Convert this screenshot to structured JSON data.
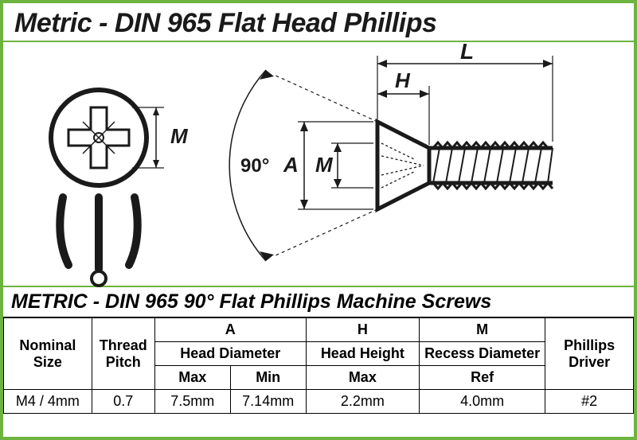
{
  "title": "Metric - DIN 965 Flat Head Phillips",
  "subtitle": "METRIC - DIN 965   90° Flat Phillips Machine Screws",
  "colors": {
    "border": "#6cb33f",
    "diagram_stroke": "#1a1a1a",
    "background": "#ffffff",
    "text": "#1a1a1a"
  },
  "diagram": {
    "angle_label": "90°",
    "top_dim_L": "L",
    "top_dim_H": "H",
    "side_dim_A": "A",
    "side_dim_M": "M",
    "front_dim_M": "M"
  },
  "table": {
    "headers": {
      "nominal": "Nominal\nSize",
      "pitch": "Thread\nPitch",
      "A": "A",
      "A_sub": "Head Diameter",
      "A_max": "Max",
      "A_min": "Min",
      "H": "H",
      "H_sub": "Head Height",
      "H_max": "Max",
      "M": "M",
      "M_sub": "Recess Diameter",
      "M_ref": "Ref",
      "phillips": "Phillips\nDriver"
    },
    "row": {
      "nominal": "M4 / 4mm",
      "pitch": "0.7",
      "a_max": "7.5mm",
      "a_min": "7.14mm",
      "h_max": "2.2mm",
      "m_ref": "4.0mm",
      "phillips": "#2"
    }
  }
}
